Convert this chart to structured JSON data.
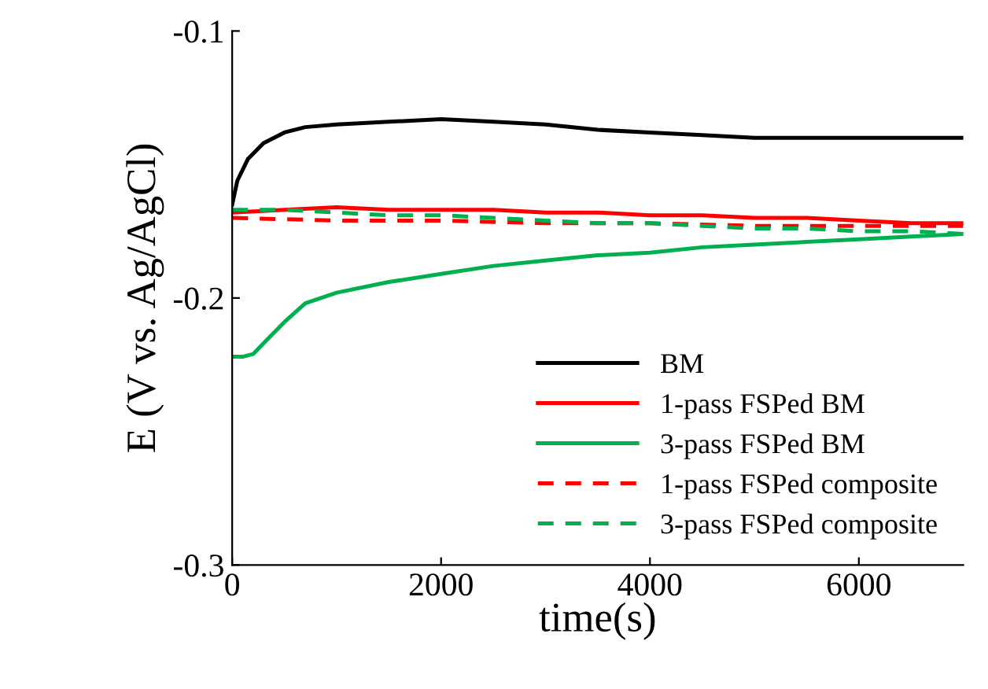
{
  "chart_data": {
    "type": "line",
    "xlabel": "time(s)",
    "ylabel": "E (V vs. Ag/AgCl)",
    "xlim": [
      0,
      7000
    ],
    "ylim": [
      -0.3,
      -0.1
    ],
    "xticks": [
      0,
      2000,
      4000,
      6000
    ],
    "yticks": [
      -0.3,
      -0.2,
      -0.1
    ],
    "grid": false,
    "legend": "lower right",
    "marker": "none",
    "series": [
      {
        "name": "BM",
        "color": "#000000",
        "line_style": "solid",
        "x": [
          0,
          50,
          150,
          300,
          500,
          700,
          1000,
          1500,
          2000,
          2500,
          3000,
          3500,
          4000,
          4500,
          5000,
          5500,
          6000,
          6500,
          7000
        ],
        "values": [
          -0.165,
          -0.156,
          -0.148,
          -0.142,
          -0.138,
          -0.136,
          -0.135,
          -0.134,
          -0.133,
          -0.134,
          -0.135,
          -0.137,
          -0.138,
          -0.139,
          -0.14,
          -0.14,
          -0.14,
          -0.14,
          -0.14
        ]
      },
      {
        "name": "1-pass FSPed BM",
        "color": "#ff0000",
        "line_style": "solid",
        "x": [
          0,
          500,
          1000,
          1500,
          2000,
          2500,
          3000,
          3500,
          4000,
          4500,
          5000,
          5500,
          6000,
          6500,
          7000
        ],
        "values": [
          -0.168,
          -0.167,
          -0.166,
          -0.167,
          -0.167,
          -0.167,
          -0.168,
          -0.168,
          -0.169,
          -0.169,
          -0.17,
          -0.17,
          -0.171,
          -0.172,
          -0.172
        ]
      },
      {
        "name": "3-pass FSPed BM",
        "color": "#00b050",
        "line_style": "solid",
        "x": [
          0,
          100,
          200,
          300,
          400,
          500,
          700,
          1000,
          1500,
          2000,
          2500,
          3000,
          3500,
          4000,
          4500,
          5000,
          5500,
          6000,
          6500,
          7000
        ],
        "values": [
          -0.222,
          -0.222,
          -0.221,
          -0.217,
          -0.213,
          -0.209,
          -0.202,
          -0.198,
          -0.194,
          -0.191,
          -0.188,
          -0.186,
          -0.184,
          -0.183,
          -0.181,
          -0.18,
          -0.179,
          -0.178,
          -0.177,
          -0.176
        ]
      },
      {
        "name": "1-pass FSPed composite",
        "color": "#ff0000",
        "line_style": "dashed",
        "x": [
          0,
          1000,
          2000,
          3000,
          4000,
          5000,
          6000,
          7000
        ],
        "values": [
          -0.17,
          -0.171,
          -0.171,
          -0.172,
          -0.172,
          -0.173,
          -0.173,
          -0.173
        ]
      },
      {
        "name": "3-pass FSPed composite",
        "color": "#00b050",
        "line_style": "dashed",
        "x": [
          0,
          500,
          1000,
          1500,
          2000,
          2500,
          3000,
          3500,
          4000,
          4500,
          5000,
          5500,
          6000,
          6500,
          7000
        ],
        "values": [
          -0.167,
          -0.167,
          -0.168,
          -0.169,
          -0.169,
          -0.17,
          -0.171,
          -0.172,
          -0.172,
          -0.173,
          -0.174,
          -0.174,
          -0.175,
          -0.175,
          -0.176
        ]
      }
    ]
  }
}
